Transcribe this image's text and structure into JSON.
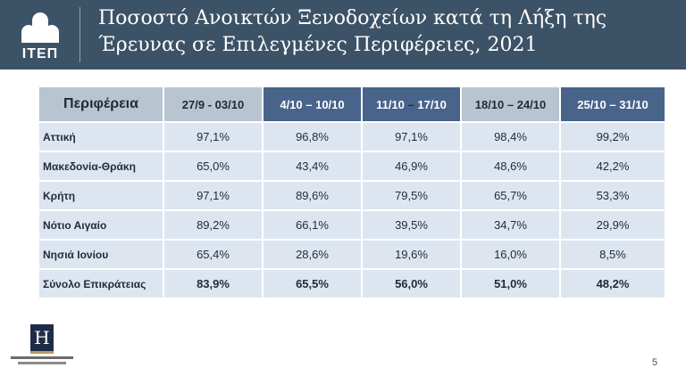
{
  "logo": {
    "text": "ΙΤΕΠ"
  },
  "title": {
    "line1": "Ποσοστό Ανοικτών Ξενοδοχείων κατά τη Λήξη της",
    "line2": "Έρευνας σε Επιλεγμένες Περιφέρειες, 2021"
  },
  "table": {
    "region_header": "Περιφέρεια",
    "weeks": [
      "27/9 - 03/10",
      "4/10 – 10/10",
      "11/10 – 17/10",
      "18/10 – 24/10",
      "25/10 – 31/10"
    ],
    "rows": [
      {
        "region": "Αττική",
        "values": [
          "97,1%",
          "96,8%",
          "97,1%",
          "98,4%",
          "99,2%"
        ]
      },
      {
        "region": "Μακεδονία-Θράκη",
        "values": [
          "65,0%",
          "43,4%",
          "46,9%",
          "48,6%",
          "42,2%"
        ]
      },
      {
        "region": "Κρήτη",
        "values": [
          "97,1%",
          "89,6%",
          "79,5%",
          "65,7%",
          "53,3%"
        ]
      },
      {
        "region": "Νότιο Αιγαίο",
        "values": [
          "89,2%",
          "66,1%",
          "39,5%",
          "34,7%",
          "29,9%"
        ]
      },
      {
        "region": "Νησιά Ιονίου",
        "values": [
          "65,4%",
          "28,6%",
          "19,6%",
          "16,0%",
          "8,5%"
        ]
      },
      {
        "region": "Σύνολο Επικράτειας",
        "values": [
          "83,9%",
          "65,5%",
          "56,0%",
          "51,0%",
          "48,2%"
        ]
      }
    ]
  },
  "hotel_logo": {
    "letter": "H"
  },
  "page_number": "5"
}
